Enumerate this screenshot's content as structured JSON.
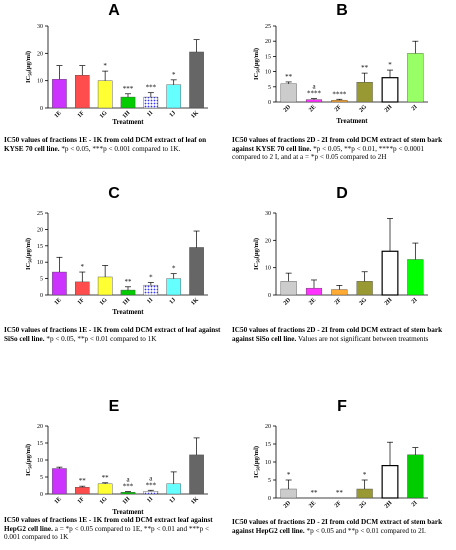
{
  "chart_data": [
    {
      "type": "bar",
      "panel_label": "A",
      "categories": [
        "1E",
        "1F",
        "1G",
        "1H",
        "1I",
        "1J",
        "1K"
      ],
      "values": [
        10.5,
        12,
        10,
        4,
        4,
        8.5,
        20.5
      ],
      "errors": [
        5,
        3.5,
        3.5,
        1.2,
        1.6,
        1.8,
        4.5
      ],
      "colors": [
        "#cc33ff",
        "#ff4d4d",
        "#ffff33",
        "#00cc00",
        "#3333ff",
        "#66ffff",
        "#666666"
      ],
      "patterns": [
        "solid",
        "solid",
        "solid",
        "solid",
        "dotted",
        "solid",
        "solid"
      ],
      "annotations": [
        "",
        "",
        "*",
        "***",
        "***",
        "*",
        ""
      ],
      "ylabel_main": "IC",
      "ylabel_sub": "50",
      "ylabel_tail": "(µg/ml)",
      "xlabel": "Treatment",
      "ylim": [
        0,
        30
      ],
      "yticks": [
        "0",
        "10",
        "20",
        "30"
      ],
      "caption_bold": "IC50 values of fractions 1E - 1K from cold DCM extract of leaf on KYSE 70 cell line.",
      "caption_normal": "*p < 0.05, ***p < 0.001 compared to 1K."
    },
    {
      "type": "bar",
      "panel_label": "B",
      "categories": [
        "2D",
        "2E",
        "2F",
        "2G",
        "2H",
        "2I"
      ],
      "values": [
        6,
        0.8,
        0.6,
        6.5,
        8,
        16
      ],
      "errors": [
        0.6,
        0.3,
        0.3,
        3,
        2.5,
        4
      ],
      "colors": [
        "#cccccc",
        "#ff33ff",
        "#ffaa33",
        "#999933",
        "#ffffff",
        "#99ff66"
      ],
      "patterns": [
        "solid",
        "solid",
        "solid",
        "solid",
        "outline",
        "solid"
      ],
      "annotations": [
        "**",
        "a\n****",
        "****",
        "**",
        "*",
        ""
      ],
      "ylabel_main": "IC",
      "ylabel_sub": "50",
      "ylabel_tail": "(µg/ml)",
      "xlabel": "Treatment",
      "ylim": [
        0,
        25
      ],
      "yticks": [
        "0",
        "5",
        "10",
        "15",
        "20",
        "25"
      ],
      "caption_bold": "IC50 values of fractions 2D - 2I from cold DCM extract of stem bark against KYSE 70 cell line.",
      "caption_normal": "*p < 0.05, **p < 0.01, ****p < 0.0001 compared to 2 I, and at a = *p < 0.05 compared to 2H"
    },
    {
      "type": "bar",
      "panel_label": "C",
      "categories": [
        "1E",
        "1F",
        "1G",
        "1H",
        "1I",
        "1J",
        "1K"
      ],
      "values": [
        7,
        4,
        5.5,
        1.5,
        3,
        5,
        14.5
      ],
      "errors": [
        4.5,
        3,
        3.5,
        1,
        0.8,
        1.5,
        5
      ],
      "colors": [
        "#cc33ff",
        "#ff4d4d",
        "#ffff33",
        "#00cc00",
        "#3333ff",
        "#66ffff",
        "#666666"
      ],
      "patterns": [
        "solid",
        "solid",
        "solid",
        "solid",
        "dotted",
        "solid",
        "solid"
      ],
      "annotations": [
        "",
        "*",
        "",
        "**",
        "*",
        "*",
        ""
      ],
      "ylabel_main": "IC",
      "ylabel_sub": "50",
      "ylabel_tail": "(µg/ml)",
      "xlabel": "Treatment",
      "ylim": [
        0,
        25
      ],
      "yticks": [
        "0",
        "5",
        "10",
        "15",
        "20",
        "25"
      ],
      "caption_bold": "IC50 values of fractions 1E - 1K from cold DCM extract of leaf against SiSo cell line.",
      "caption_normal": "*p < 0.05, **p < 0.01 compared to 1K"
    },
    {
      "type": "bar",
      "panel_label": "D",
      "categories": [
        "2D",
        "2E",
        "2F",
        "2G",
        "2H",
        "2I"
      ],
      "values": [
        5,
        2.5,
        2,
        5,
        16,
        13
      ],
      "errors": [
        3,
        3,
        1.5,
        3.5,
        12,
        6
      ],
      "colors": [
        "#cccccc",
        "#ff33ff",
        "#ffaa33",
        "#999933",
        "#ffffff",
        "#00ff00"
      ],
      "patterns": [
        "solid",
        "solid",
        "solid",
        "solid",
        "outline",
        "solid"
      ],
      "annotations": [
        "",
        "",
        "",
        "",
        "",
        ""
      ],
      "ylabel_main": "IC",
      "ylabel_sub": "50",
      "ylabel_tail": "(µg/ml)",
      "xlabel": "",
      "ylim": [
        0,
        30
      ],
      "yticks": [
        "0",
        "10",
        "20",
        "30"
      ],
      "caption_bold": "IC50 values of fractions 2D - 2I from cold DCM extract of stem bark against SiSo cell line.",
      "caption_normal": "Values are not significant between treatments"
    },
    {
      "type": "bar",
      "panel_label": "E",
      "categories": [
        "1E",
        "1F",
        "1G",
        "1H",
        "1I",
        "1J",
        "1K"
      ],
      "values": [
        7.5,
        2,
        3,
        0.5,
        0.8,
        3,
        11.5
      ],
      "errors": [
        0.4,
        0.3,
        0.3,
        0.2,
        0.3,
        3.5,
        5
      ],
      "colors": [
        "#cc33ff",
        "#ff4d4d",
        "#ffff33",
        "#00cc00",
        "#3333ff",
        "#66ffff",
        "#666666"
      ],
      "patterns": [
        "solid",
        "solid",
        "solid",
        "solid",
        "dotted",
        "solid",
        "solid"
      ],
      "annotations": [
        "",
        "**",
        "**",
        "a\n***",
        "a\n***",
        "",
        ""
      ],
      "ylabel_main": "IC",
      "ylabel_sub": "50",
      "ylabel_tail": "(µg/ml)",
      "xlabel": "Treatment",
      "ylim": [
        0,
        20
      ],
      "yticks": [
        "0",
        "5",
        "10",
        "15",
        "20"
      ],
      "caption_bold": "IC50 values of fractions 1E - 1K from cold DCM extract leaf against HepG2 cell line.",
      "caption_normal": "a = *p < 0.05 compared to 1E, **p < 0.01 and ***p < 0.001 compared to 1K"
    },
    {
      "type": "bar",
      "panel_label": "F",
      "categories": [
        "2D",
        "2E",
        "2F",
        "2G",
        "2H",
        "2I"
      ],
      "values": [
        2.5,
        0,
        0,
        2.5,
        9,
        12
      ],
      "errors": [
        2.5,
        0,
        0,
        2.5,
        6.5,
        2
      ],
      "colors": [
        "#cccccc",
        "#ff33ff",
        "#ffaa33",
        "#999933",
        "#ffffff",
        "#00cc00"
      ],
      "patterns": [
        "solid",
        "solid",
        "solid",
        "solid",
        "outline",
        "solid"
      ],
      "annotations": [
        "*",
        "**",
        "**",
        "*",
        "",
        ""
      ],
      "ylabel_main": "IC",
      "ylabel_sub": "50",
      "ylabel_tail": "(µg/ml)",
      "xlabel": "",
      "ylim": [
        0,
        20
      ],
      "yticks": [
        "0",
        "5",
        "10",
        "15",
        "20"
      ],
      "caption_bold": "IC50 values of fractions 2D - 2I from cold DCM extract of stem bark against HepG2 cell line.",
      "caption_normal": "*p < 0.05 and **p < 0.01 compared to 2I."
    }
  ]
}
